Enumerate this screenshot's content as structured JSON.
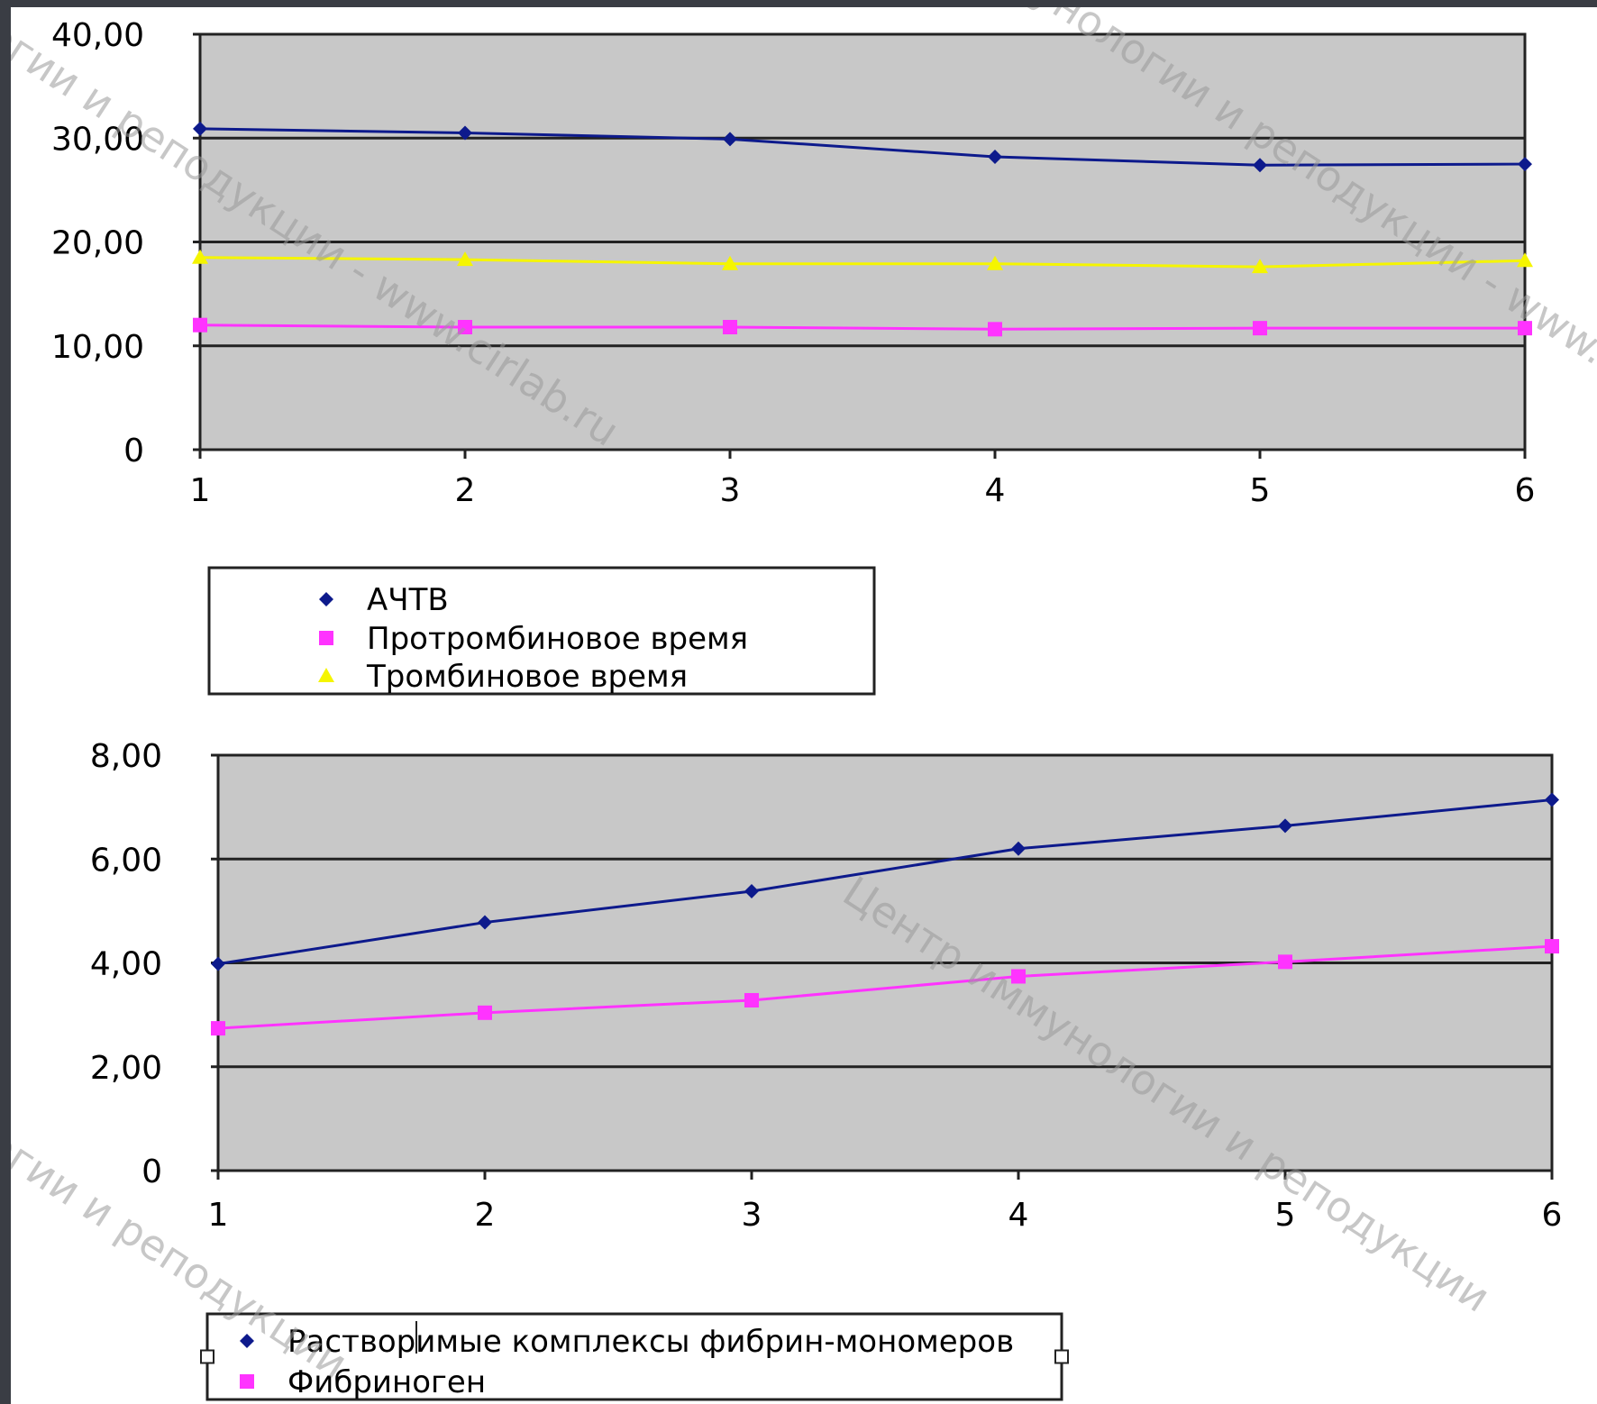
{
  "chart_data": [
    {
      "type": "line",
      "categories": [
        "1",
        "2",
        "3",
        "4",
        "5",
        "6"
      ],
      "y_ticks": [
        "0",
        "10,00",
        "20,00",
        "30,00",
        "40,00"
      ],
      "ylim": [
        0,
        40
      ],
      "grid": true,
      "legend_position": "bottom-left",
      "series": [
        {
          "name": "АЧТВ",
          "color": "#0d1a8c",
          "marker": "diamond",
          "values": [
            30.9,
            30.5,
            29.9,
            28.2,
            27.4,
            27.5
          ]
        },
        {
          "name": "Протромбиновое время",
          "color": "#ff33ff",
          "marker": "square",
          "values": [
            12.0,
            11.8,
            11.8,
            11.6,
            11.7,
            11.7
          ]
        },
        {
          "name": "Тромбиновое время",
          "color": "#f5f500",
          "marker": "triangle",
          "values": [
            18.5,
            18.3,
            17.9,
            17.9,
            17.6,
            18.2
          ]
        }
      ]
    },
    {
      "type": "line",
      "categories": [
        "1",
        "2",
        "3",
        "4",
        "5",
        "6"
      ],
      "y_ticks": [
        "0",
        "2,00",
        "4,00",
        "6,00",
        "8,00"
      ],
      "ylim": [
        0,
        8
      ],
      "grid": true,
      "legend_position": "bottom-left",
      "series": [
        {
          "name": "Растворимые комплексы фибрин-мономеров",
          "color": "#0d1a8c",
          "marker": "diamond",
          "values": [
            3.98,
            4.78,
            5.38,
            6.2,
            6.64,
            7.14
          ]
        },
        {
          "name": "Фибриноген",
          "color": "#ff33ff",
          "marker": "square",
          "values": [
            2.74,
            3.04,
            3.28,
            3.74,
            4.02,
            4.32
          ]
        }
      ]
    }
  ],
  "watermarks": [
    "огии и реподукции - www.cirlab.ru",
    "унологии и реподукции - www.cirlab.ru",
    "Центр иммунологии и реподукции",
    "огии и реподукции"
  ]
}
